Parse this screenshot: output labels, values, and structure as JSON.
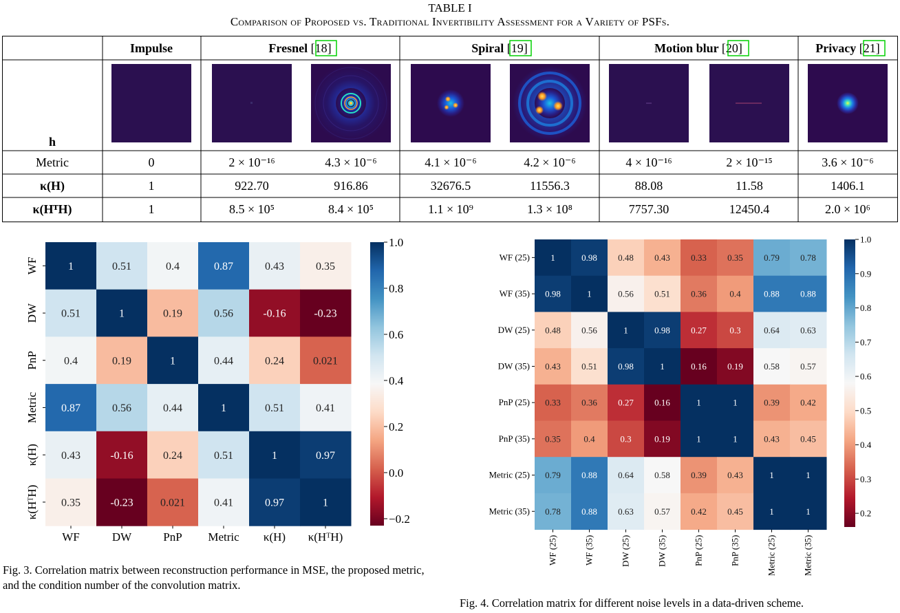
{
  "table": {
    "label": "TABLE I",
    "title": "Comparison of Proposed vs. Traditional Invertibility Assessment for a Variety of PSFs.",
    "headers": [
      {
        "name": "Impulse",
        "ref": ""
      },
      {
        "name": "Fresnel ",
        "ref": "18"
      },
      {
        "name": "Spiral ",
        "ref": "19"
      },
      {
        "name": "Motion blur ",
        "ref": "20"
      },
      {
        "name": "Privacy ",
        "ref": "21"
      }
    ],
    "row_h_label": "h",
    "row_labels": {
      "metric": "Metric",
      "kappa_h": "κ(H)",
      "kappa_hth": "κ(HᵀH)"
    },
    "metric": [
      "0",
      "2 × 10⁻¹⁶",
      "4.3 × 10⁻⁶",
      "4.1 × 10⁻⁶",
      "4.2 × 10⁻⁶",
      "4 × 10⁻¹⁶",
      "2 × 10⁻¹⁵",
      "3.6 × 10⁻⁶"
    ],
    "kappa_h": [
      "1",
      "922.70",
      "916.86",
      "32676.5",
      "11556.3",
      "88.08",
      "11.58",
      "1406.1"
    ],
    "kappa_hth": [
      "1",
      "8.5 × 10⁵",
      "8.4 × 10⁵",
      "1.1 × 10⁹",
      "1.3 × 10⁸",
      "7757.30",
      "12450.4",
      "2.0 × 10⁶"
    ],
    "psf_icons": [
      "impulse-psf",
      "fresnel-psf-a",
      "fresnel-psf-b",
      "spiral-psf-a",
      "spiral-psf-b",
      "motion-psf-a",
      "motion-psf-b",
      "privacy-psf"
    ]
  },
  "chart_data": [
    {
      "type": "heatmap",
      "x_labels": [
        "WF",
        "DW",
        "PnP",
        "Metric",
        "κ(H)",
        "κ(HᵀH)"
      ],
      "y_labels": [
        "WF",
        "DW",
        "PnP",
        "Metric",
        "κ(H)",
        "κ(HᵀH)"
      ],
      "values": [
        [
          1,
          0.51,
          0.4,
          0.87,
          0.43,
          0.35
        ],
        [
          0.51,
          1,
          0.19,
          0.56,
          -0.16,
          -0.23
        ],
        [
          0.4,
          0.19,
          1,
          0.44,
          0.24,
          0.021
        ],
        [
          0.87,
          0.56,
          0.44,
          1,
          0.51,
          0.41
        ],
        [
          0.43,
          -0.16,
          0.24,
          0.51,
          1,
          0.97
        ],
        [
          0.35,
          -0.23,
          0.021,
          0.41,
          0.97,
          1
        ]
      ],
      "vmin": -0.23,
      "vmax": 1.0,
      "colorbar_ticks": [
        1.0,
        0.8,
        0.6,
        0.4,
        0.2,
        0.0,
        -0.2
      ],
      "colorbar_labels": [
        "1.0",
        "0.8",
        "0.6",
        "0.4",
        "0.2",
        "0.0",
        "−0.2"
      ],
      "colormap": "RdBu"
    },
    {
      "type": "heatmap",
      "x_labels": [
        "WF (25)",
        "WF (35)",
        "DW (25)",
        "DW (35)",
        "PnP (25)",
        "PnP (35)",
        "Metric (25)",
        "Metric (35)"
      ],
      "y_labels": [
        "WF (25)",
        "WF (35)",
        "DW (25)",
        "DW (35)",
        "PnP (25)",
        "PnP (35)",
        "Metric (25)",
        "Metric (35)"
      ],
      "values": [
        [
          1,
          0.98,
          0.48,
          0.43,
          0.33,
          0.35,
          0.79,
          0.78
        ],
        [
          0.98,
          1,
          0.56,
          0.51,
          0.36,
          0.4,
          0.88,
          0.88
        ],
        [
          0.48,
          0.56,
          1,
          0.98,
          0.27,
          0.3,
          0.64,
          0.63
        ],
        [
          0.43,
          0.51,
          0.98,
          1,
          0.16,
          0.19,
          0.58,
          0.57
        ],
        [
          0.33,
          0.36,
          0.27,
          0.16,
          1,
          1,
          0.39,
          0.42
        ],
        [
          0.35,
          0.4,
          0.3,
          0.19,
          1,
          1,
          0.43,
          0.45
        ],
        [
          0.79,
          0.88,
          0.64,
          0.58,
          0.39,
          0.43,
          1,
          1
        ],
        [
          0.78,
          0.88,
          0.63,
          0.57,
          0.42,
          0.45,
          1,
          1
        ]
      ],
      "vmin": 0.16,
      "vmax": 1.0,
      "colorbar_ticks": [
        1.0,
        0.9,
        0.8,
        0.7,
        0.6,
        0.5,
        0.4,
        0.3,
        0.2
      ],
      "colorbar_labels": [
        "1.0",
        "0.9",
        "0.8",
        "0.7",
        "0.6",
        "0.5",
        "0.4",
        "0.3",
        "0.2"
      ],
      "colormap": "RdBu"
    }
  ],
  "fig3_caption": "Fig. 3.  Correlation matrix between reconstruction performance in MSE, the proposed metric, and the condition number of the convolution matrix.",
  "fig4_caption": "Fig. 4.  Correlation matrix for different noise levels in a data-driven scheme."
}
